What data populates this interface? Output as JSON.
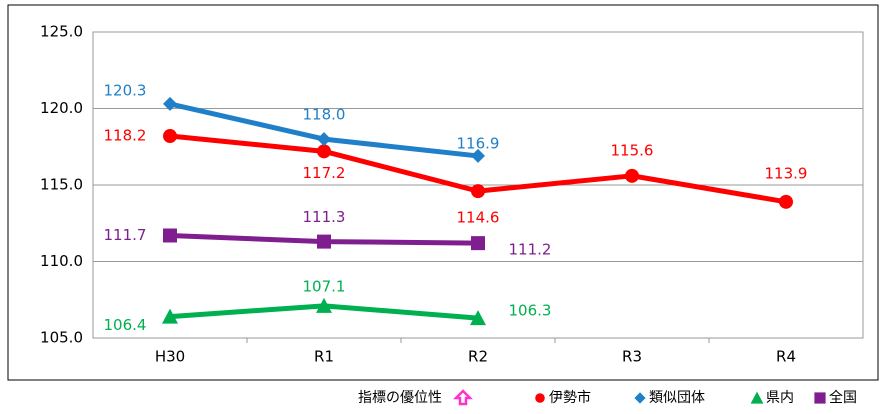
{
  "chart_data": {
    "type": "line",
    "categories": [
      "H30",
      "R1",
      "R2",
      "R3",
      "R4"
    ],
    "series": [
      {
        "name": "伊勢市",
        "color": "#ff0000",
        "marker": "circle",
        "values": [
          118.2,
          117.2,
          114.6,
          115.6,
          113.9
        ]
      },
      {
        "name": "類似団体",
        "color": "#1f7fc8",
        "marker": "diamond",
        "values": [
          120.3,
          118.0,
          116.9,
          null,
          null
        ],
        "value_labels": [
          "120.3",
          "118.0",
          "116.9",
          null,
          null
        ]
      },
      {
        "name": "県内",
        "color": "#00b050",
        "marker": "triangle",
        "values": [
          106.4,
          107.1,
          106.3,
          null,
          null
        ]
      },
      {
        "name": "全国",
        "color": "#7f1f8f",
        "marker": "square",
        "values": [
          111.7,
          111.3,
          111.2,
          null,
          null
        ]
      }
    ],
    "ylim": [
      105,
      125
    ],
    "yticks": [
      {
        "value": 105,
        "label": "105.0"
      },
      {
        "value": 110,
        "label": "110.0"
      },
      {
        "value": 115,
        "label": "115.0"
      },
      {
        "value": 120,
        "label": "120.0"
      },
      {
        "value": 125,
        "label": "125.0"
      }
    ],
    "grid": true,
    "legend_note": "指標の優位性",
    "legend_position": "bottom"
  }
}
